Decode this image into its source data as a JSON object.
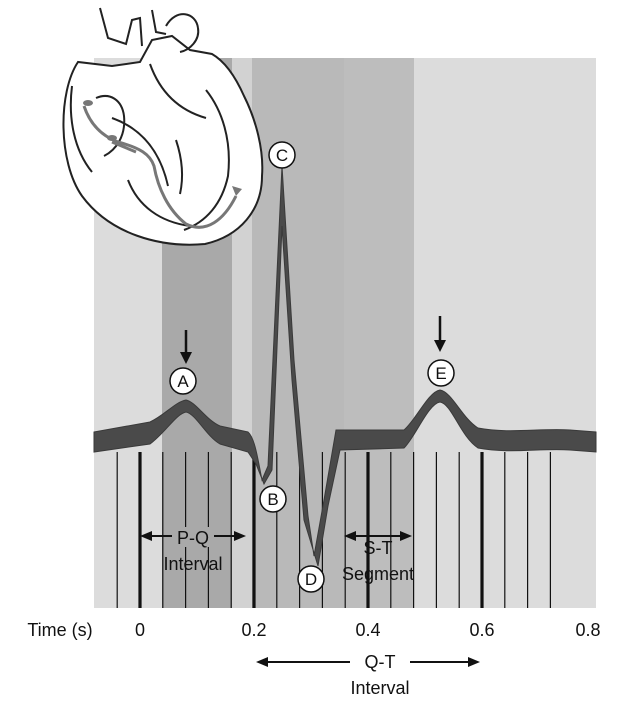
{
  "points": {
    "a": "A",
    "b": "B",
    "c": "C",
    "d": "D",
    "e": "E"
  },
  "labels": {
    "pq_line1": "P-Q",
    "pq_line2": "Interval",
    "st_line1": "S-T",
    "st_line2": "Segment",
    "qt_line1": "Q-T",
    "qt_line2": "Interval"
  },
  "axis": {
    "label": "Time (s)",
    "ticks": [
      {
        "value": 0,
        "text": "0"
      },
      {
        "value": 0.2,
        "text": "0.2"
      },
      {
        "value": 0.4,
        "text": "0.4"
      },
      {
        "value": 0.6,
        "text": "0.6"
      },
      {
        "value": 0.8,
        "text": "0.8"
      }
    ]
  },
  "colors": {
    "background_light": "#dcdcdc",
    "band_medium": "#b9b9b9",
    "band_dark": "#a9a9a9",
    "trace": "#4a4a4a",
    "grid_line": "#111111"
  },
  "regions": {
    "pq_interval": [
      0.04,
      0.16
    ],
    "qt_interval": [
      0.2,
      0.48
    ],
    "st_segment": [
      0.38,
      0.48
    ]
  }
}
